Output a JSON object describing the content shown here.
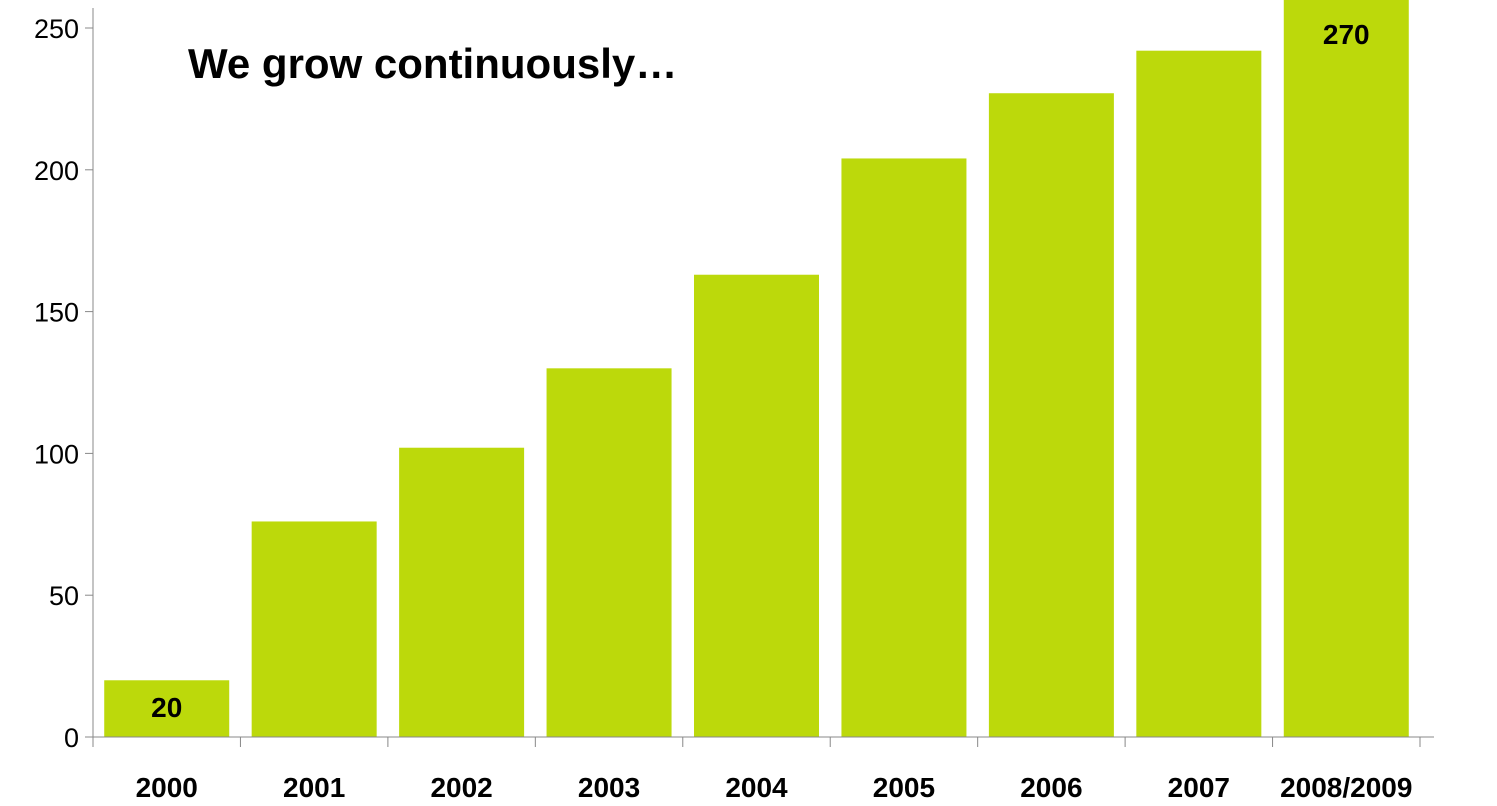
{
  "chart_data": {
    "type": "bar",
    "title": "We grow continuously…",
    "xlabel": "",
    "ylabel": "",
    "categories": [
      "2000",
      "2001",
      "2002",
      "2003",
      "2004",
      "2005",
      "2006",
      "2007",
      "2008/2009"
    ],
    "values": [
      20,
      76,
      102,
      130,
      163,
      204,
      227,
      242,
      270
    ],
    "data_labels": {
      "2000": "20",
      "2008/2009": "270"
    },
    "yticks": [
      0,
      50,
      100,
      150,
      200,
      250
    ],
    "ylim": [
      0,
      250
    ],
    "grid": false,
    "legend": "none",
    "colors": {
      "bar": "#bcd90b",
      "axis": "#888888",
      "text": "#000000"
    }
  }
}
